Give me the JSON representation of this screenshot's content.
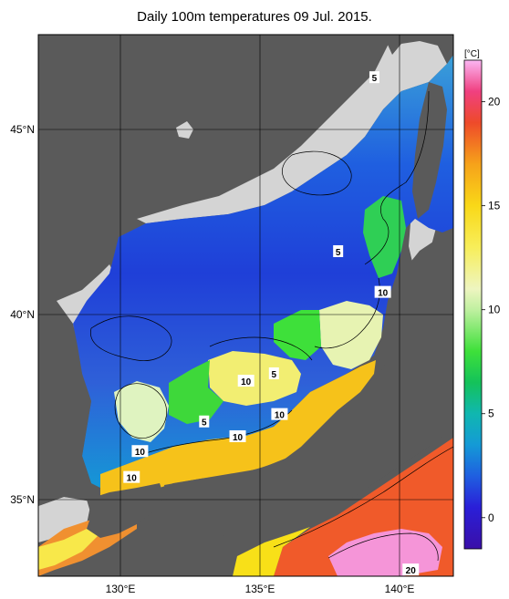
{
  "title": "Daily 100m temperatures 09 Jul. 2015.",
  "map": {
    "lon_ticks": [
      {
        "label": "130°E",
        "lon": 130
      },
      {
        "label": "135°E",
        "lon": 135
      },
      {
        "label": "140°E",
        "lon": 140
      }
    ],
    "lat_ticks": [
      {
        "label": "45°N",
        "lat": 45
      },
      {
        "label": "40°N",
        "lat": 40
      },
      {
        "label": "35°N",
        "lat": 35
      }
    ],
    "contour_labels": [
      {
        "text": "5",
        "lon": 139.1,
        "lat": 46.4
      },
      {
        "text": "5",
        "lon": 137.8,
        "lat": 41.7
      },
      {
        "text": "10",
        "lon": 139.4,
        "lat": 40.6
      },
      {
        "text": "5",
        "lon": 135.5,
        "lat": 38.4
      },
      {
        "text": "10",
        "lon": 134.5,
        "lat": 38.2
      },
      {
        "text": "10",
        "lon": 135.7,
        "lat": 37.3
      },
      {
        "text": "5",
        "lon": 133.0,
        "lat": 37.1
      },
      {
        "text": "10",
        "lon": 134.2,
        "lat": 36.7
      },
      {
        "text": "10",
        "lon": 130.7,
        "lat": 36.3
      },
      {
        "text": "10",
        "lon": 130.4,
        "lat": 35.6
      },
      {
        "text": "20",
        "lon": 140.4,
        "lat": 33.1
      }
    ]
  },
  "colorbar": {
    "unit": "[°C]",
    "ticks": [
      {
        "label": "20",
        "value": 20
      },
      {
        "label": "15",
        "value": 15
      },
      {
        "label": "10",
        "value": 10
      },
      {
        "label": "5",
        "value": 5
      },
      {
        "label": "0",
        "value": 0
      }
    ],
    "range": [
      -1.5,
      22
    ],
    "stops": [
      {
        "value": -1.5,
        "color": "#3a0fa8"
      },
      {
        "value": 0.5,
        "color": "#2a1fd8"
      },
      {
        "value": 2,
        "color": "#1f5fe0"
      },
      {
        "value": 3.5,
        "color": "#149ad6"
      },
      {
        "value": 5,
        "color": "#10b7b0"
      },
      {
        "value": 6.5,
        "color": "#14c25a"
      },
      {
        "value": 8,
        "color": "#3ee03a"
      },
      {
        "value": 10,
        "color": "#bff0a0"
      },
      {
        "value": 11,
        "color": "#eef5c0"
      },
      {
        "value": 13,
        "color": "#f7ee5a"
      },
      {
        "value": 15,
        "color": "#f9d818"
      },
      {
        "value": 17,
        "color": "#f6a21a"
      },
      {
        "value": 19,
        "color": "#ee4a2a"
      },
      {
        "value": 20.5,
        "color": "#f04080"
      },
      {
        "value": 22,
        "color": "#fbb6f3"
      }
    ]
  },
  "colors": {
    "land": "#5a5a5a",
    "shelf": "#d4d4d4",
    "sea_cold": "#1f3fd8",
    "sea_mid": "#3aa0d8",
    "sea_warm_shelf": "#f2a02a"
  }
}
